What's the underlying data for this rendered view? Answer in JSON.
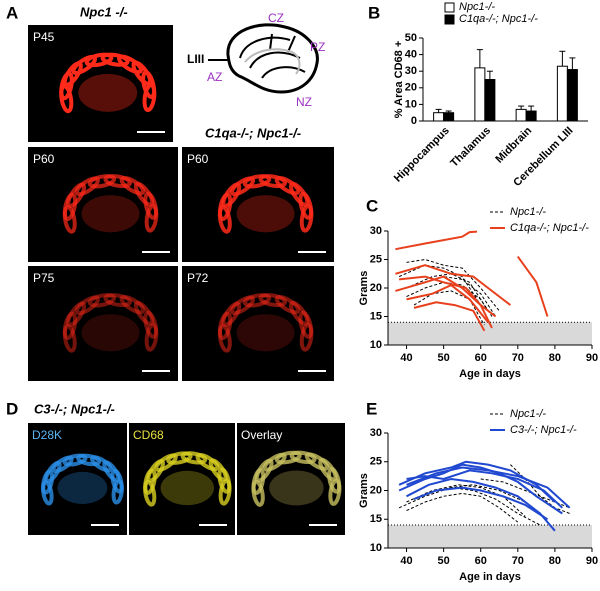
{
  "panel_labels": [
    "A",
    "B",
    "C",
    "D",
    "E"
  ],
  "panel_a": {
    "title": "Npc1 -/-",
    "title2": "C1qa-/-; Npc1-/-",
    "image_labels": [
      "P45",
      "P60",
      "P60",
      "P75",
      "P72"
    ],
    "diagram_labels": [
      "CZ",
      "PZ",
      "AZ",
      "NZ",
      "LIII"
    ]
  },
  "panel_d": {
    "title": "C3-/-; Npc1-/-",
    "image_labels": [
      "D28K",
      "CD68",
      "Overlay"
    ]
  },
  "chart_data": [
    {
      "type": "bar",
      "ylabel": "% Area CD68 +",
      "categories": [
        "Hippocampus",
        "Thalamus",
        "Midbrain",
        "Cerebellum LIII"
      ],
      "series": [
        {
          "name": "Npc1-/-",
          "color": "#ffffff",
          "values": [
            5,
            32,
            7,
            33
          ],
          "errors": [
            2,
            11,
            2,
            9
          ]
        },
        {
          "name": "C1qa-/-; Npc1-/-",
          "color": "#000000",
          "values": [
            5,
            25,
            6,
            31
          ],
          "errors": [
            1,
            5,
            3,
            7
          ]
        }
      ],
      "ylim": [
        0,
        50
      ],
      "yticks": [
        0,
        10,
        20,
        30,
        40,
        50
      ]
    },
    {
      "type": "line",
      "xlabel": "Age in days",
      "ylabel": "Grams",
      "xlim": [
        35,
        90
      ],
      "xticks": [
        40,
        50,
        60,
        70,
        80,
        90
      ],
      "ylim": [
        10,
        30
      ],
      "yticks": [
        10,
        15,
        20,
        25,
        30
      ],
      "threshold": 14,
      "series": [
        {
          "name": "Npc1-/-",
          "color": "#000000",
          "dashed": true,
          "lines": [
            {
              "x": [
                40,
                45,
                50,
                55,
                60,
                65
              ],
              "values": [
                24.5,
                25,
                24,
                23.5,
                20,
                16
              ]
            },
            {
              "x": [
                38,
                45,
                50,
                55,
                60
              ],
              "values": [
                22,
                24,
                23.5,
                22,
                17
              ]
            },
            {
              "x": [
                40,
                47,
                52,
                57,
                62
              ],
              "values": [
                20,
                22,
                22.5,
                21,
                16
              ]
            },
            {
              "x": [
                40,
                45,
                50,
                55,
                60,
                63
              ],
              "values": [
                18.5,
                20,
                21,
                20.5,
                18,
                15
              ]
            },
            {
              "x": [
                42,
                47,
                52,
                57,
                61
              ],
              "values": [
                17,
                19,
                19.5,
                18,
                13.5
              ]
            },
            {
              "x": [
                45,
                50,
                55,
                60,
                64
              ],
              "values": [
                21,
                22,
                21.5,
                19,
                15
              ]
            }
          ]
        },
        {
          "name": "C1qa-/-; Npc1-/-",
          "color": "#e8401c",
          "dashed": false,
          "lines": [
            {
              "x": [
                37,
                45,
                55,
                57,
                59
              ],
              "values": [
                26.8,
                27.8,
                29,
                29.8,
                29.9
              ]
            },
            {
              "x": [
                37,
                45,
                52,
                58,
                62,
                68
              ],
              "values": [
                22.5,
                24,
                22.5,
                22,
                20,
                17
              ]
            },
            {
              "x": [
                37,
                45,
                50,
                55,
                60,
                63
              ],
              "values": [
                19.5,
                21,
                22,
                20,
                17,
                13
              ]
            },
            {
              "x": [
                40,
                47,
                52,
                57,
                62
              ],
              "values": [
                18,
                19,
                20.5,
                18,
                14
              ]
            },
            {
              "x": [
                42,
                48,
                53,
                58,
                61
              ],
              "values": [
                16.5,
                17.5,
                17,
                16,
                12.5
              ]
            },
            {
              "x": [
                70,
                75,
                78
              ],
              "values": [
                25.5,
                21,
                15
              ]
            },
            {
              "x": [
                38,
                45,
                50,
                56,
                60,
                64
              ],
              "values": [
                21.5,
                22,
                21,
                20,
                17,
                15
              ]
            }
          ]
        }
      ]
    },
    {
      "type": "line",
      "xlabel": "Age in days",
      "ylabel": "Grams",
      "xlim": [
        35,
        90
      ],
      "xticks": [
        40,
        50,
        60,
        70,
        80,
        90
      ],
      "ylim": [
        10,
        30
      ],
      "yticks": [
        10,
        15,
        20,
        25,
        30
      ],
      "threshold": 14,
      "series": [
        {
          "name": "Npc1-/-",
          "color": "#000000",
          "dashed": true,
          "lines": [
            {
              "x": [
                38,
                45,
                52,
                58,
                64,
                70,
                76
              ],
              "values": [
                17,
                19,
                20.5,
                20,
                18.5,
                16,
                14
              ]
            },
            {
              "x": [
                40,
                47,
                54,
                60,
                66,
                72
              ],
              "values": [
                18,
                20,
                21,
                20.5,
                19,
                15.5
              ]
            },
            {
              "x": [
                40,
                45,
                50,
                55,
                60,
                65,
                70
              ],
              "values": [
                16.5,
                18,
                19,
                19.5,
                19,
                17,
                14.5
              ]
            },
            {
              "x": [
                68,
                72,
                76,
                80,
                84
              ],
              "values": [
                24.5,
                22,
                19,
                17,
                16
              ]
            },
            {
              "x": [
                60,
                66,
                72,
                78,
                84
              ],
              "values": [
                22,
                21.5,
                20,
                18.5,
                17
              ]
            },
            {
              "x": [
                45,
                52,
                58,
                65,
                72,
                78
              ],
              "values": [
                19.5,
                20.5,
                21,
                20,
                18,
                15
              ]
            }
          ]
        },
        {
          "name": "C3-/-; Npc1-/-",
          "color": "#2048d0",
          "dashed": false,
          "lines": [
            {
              "x": [
                38,
                45,
                52,
                56,
                62,
                68,
                75,
                80
              ],
              "values": [
                21,
                23,
                24,
                25,
                24.5,
                23.5,
                21,
                18
              ]
            },
            {
              "x": [
                38,
                45,
                50,
                55,
                60,
                65,
                70,
                75,
                82
              ],
              "values": [
                20,
                22,
                23,
                24.5,
                24,
                23,
                21.5,
                19,
                16
              ]
            },
            {
              "x": [
                40,
                45,
                50,
                57,
                63,
                70,
                77,
                82
              ],
              "values": [
                22,
                22.5,
                22,
                23.5,
                23,
                22,
                20,
                17
              ]
            },
            {
              "x": [
                40,
                46,
                52,
                58,
                64,
                70,
                76,
                80
              ],
              "values": [
                19,
                21,
                22,
                21.5,
                20.5,
                19,
                16,
                13
              ]
            },
            {
              "x": [
                42,
                48,
                55,
                60,
                66,
                72,
                78
              ],
              "values": [
                18.5,
                20,
                20.5,
                20,
                19,
                17.5,
                15
              ]
            },
            {
              "x": [
                40,
                48,
                55,
                62,
                70,
                78,
                84
              ],
              "values": [
                21,
                23,
                24,
                23.5,
                22.5,
                20.5,
                17
              ]
            }
          ]
        }
      ]
    }
  ]
}
